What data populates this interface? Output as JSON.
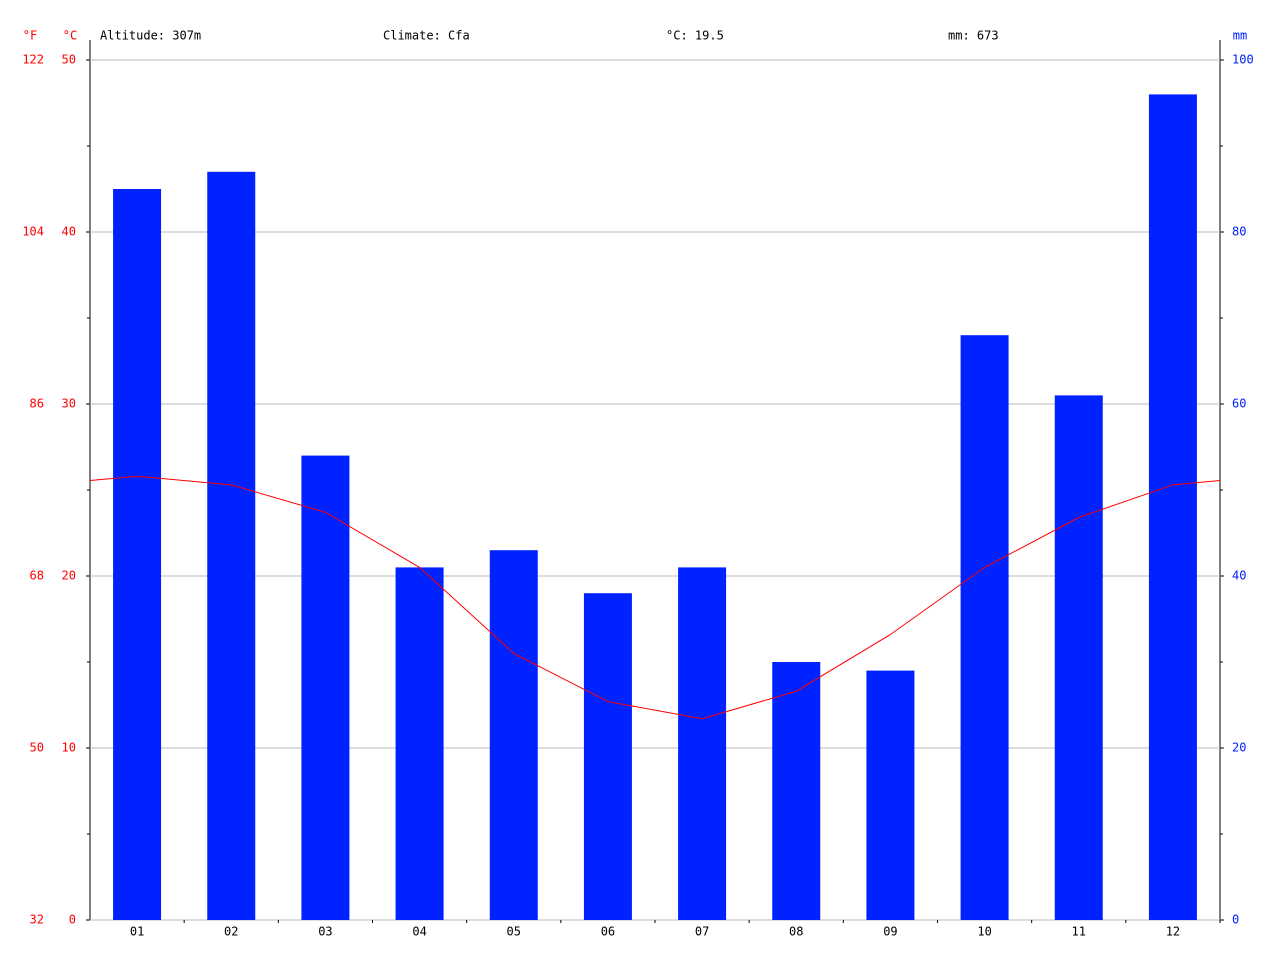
{
  "chart_data": {
    "type": "combo",
    "header": [
      "Altitude: 307m",
      "Climate: Cfa",
      "°C: 19.5",
      "mm: 673"
    ],
    "y_unit": "°C",
    "y2_unit": "mm",
    "fahrenheit_unit": "°F",
    "categories": [
      "01",
      "02",
      "03",
      "04",
      "05",
      "06",
      "07",
      "08",
      "09",
      "10",
      "11",
      "12"
    ],
    "series": [
      {
        "type": "bar",
        "color": "#0022ff",
        "axis": "y2",
        "values": [
          85,
          87,
          54,
          41,
          43,
          38,
          41,
          30,
          29,
          68,
          61,
          96
        ]
      },
      {
        "type": "line",
        "color": "#ff0000",
        "values": [
          25.8,
          25.3,
          23.7,
          20.5,
          15.5,
          12.7,
          11.7,
          13.3,
          16.6,
          20.5,
          23.4,
          25.3
        ]
      }
    ],
    "ylim": [
      0,
      50
    ],
    "yticks": [
      0,
      10,
      20,
      30,
      40,
      50
    ],
    "y2lim": [
      0,
      100
    ],
    "y2ticks": [
      0,
      20,
      40,
      60,
      80,
      100
    ],
    "fahrenheit_lim": [
      32,
      122
    ],
    "fahrenheit_ticks": [
      32,
      50,
      68,
      86,
      104,
      122
    ],
    "grid": true
  }
}
